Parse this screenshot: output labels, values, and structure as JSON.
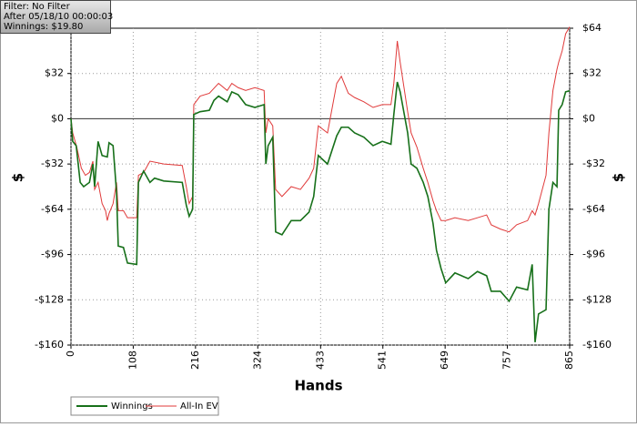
{
  "chart_data": {
    "type": "line",
    "annotations": [
      "Filter: No Filter",
      "After 05/18/10 00:00:03",
      "Winnings: $19.80"
    ],
    "x_label": "Hands",
    "y_label": "$",
    "y2_label": "$",
    "xlim": [
      0,
      865
    ],
    "xticks": [
      0,
      108,
      216,
      324,
      433,
      541,
      649,
      757,
      865
    ],
    "ylim": [
      -160,
      64
    ],
    "yticks": [
      {
        "value": -160,
        "label": "-$160"
      },
      {
        "value": -128,
        "label": "-$128"
      },
      {
        "value": -96,
        "label": "-$96"
      },
      {
        "value": -64,
        "label": "-$64"
      },
      {
        "value": -32,
        "label": "-$32"
      },
      {
        "value": 0,
        "label": "$0"
      },
      {
        "value": 32,
        "label": "$32"
      }
    ],
    "y2lim": [
      -160,
      64
    ],
    "y2ticks": [
      {
        "value": -160,
        "label": "-$160"
      },
      {
        "value": -128,
        "label": "-$128"
      },
      {
        "value": -96,
        "label": "-$96"
      },
      {
        "value": -64,
        "label": "-$64"
      },
      {
        "value": -32,
        "label": "-$32"
      },
      {
        "value": 0,
        "label": "$0"
      },
      {
        "value": 32,
        "label": "$32"
      },
      {
        "value": 64,
        "label": "$64"
      }
    ],
    "grid": true,
    "series": [
      {
        "name": "Winnings",
        "color": "#17701a",
        "x": [
          0,
          3,
          9,
          16,
          22,
          32,
          38,
          41,
          47,
          54,
          63,
          66,
          73,
          79,
          82,
          91,
          98,
          114,
          117,
          126,
          137,
          145,
          161,
          193,
          200,
          205,
          211,
          213,
          224,
          240,
          248,
          256,
          271,
          279,
          290,
          303,
          319,
          335,
          338,
          342,
          350,
          355,
          366,
          382,
          398,
          413,
          421,
          429,
          445,
          461,
          469,
          481,
          492,
          508,
          524,
          540,
          555,
          560,
          566,
          571,
          584,
          590,
          600,
          611,
          619,
          628,
          634,
          642,
          650,
          666,
          689,
          705,
          721,
          729,
          745,
          760,
          773,
          792,
          800,
          805,
          811,
          824,
          829,
          836,
          843,
          846,
          852,
          858,
          865
        ],
        "values": [
          0,
          -16,
          -19,
          -45,
          -48,
          -45,
          -32,
          -48,
          -16,
          -26,
          -27,
          -17,
          -19,
          -52,
          -90,
          -91,
          -102,
          -103,
          -45,
          -37,
          -45,
          -42,
          -44,
          -45,
          -61,
          -69,
          -64,
          3,
          5,
          6,
          13,
          16,
          12,
          19,
          17,
          10,
          8,
          10,
          -32,
          -19,
          -13,
          -80,
          -82,
          -72,
          -72,
          -66,
          -55,
          -26,
          -32,
          -12,
          -6,
          -6,
          -10,
          -13,
          -19,
          -16,
          -18,
          3,
          26,
          19,
          -10,
          -32,
          -35,
          -45,
          -55,
          -74,
          -93,
          -106,
          -116,
          -109,
          -113,
          -108,
          -111,
          -122,
          -122,
          -129,
          -119,
          -121,
          -103,
          -158,
          -138,
          -135,
          -64,
          -45,
          -48,
          6,
          10,
          19,
          19.8
        ]
      },
      {
        "name": "All-In EV",
        "color": "#e03a3a",
        "x": [
          0,
          3,
          10,
          18,
          25,
          32,
          38,
          41,
          47,
          54,
          60,
          63,
          66,
          73,
          79,
          82,
          91,
          98,
          114,
          117,
          126,
          137,
          161,
          193,
          200,
          205,
          211,
          213,
          224,
          240,
          256,
          271,
          279,
          290,
          303,
          319,
          335,
          338,
          342,
          350,
          355,
          366,
          382,
          398,
          413,
          421,
          429,
          445,
          461,
          469,
          481,
          492,
          508,
          524,
          540,
          555,
          560,
          566,
          571,
          584,
          590,
          600,
          611,
          619,
          628,
          634,
          642,
          650,
          666,
          689,
          705,
          721,
          729,
          745,
          760,
          773,
          792,
          800,
          805,
          811,
          824,
          829,
          836,
          843,
          846,
          852,
          858,
          865
        ],
        "values": [
          0,
          -10,
          -20,
          -35,
          -40,
          -38,
          -30,
          -50,
          -45,
          -60,
          -65,
          -72,
          -67,
          -60,
          -45,
          -65,
          -65,
          -70,
          -70,
          -40,
          -38,
          -30,
          -32,
          -33,
          -48,
          -60,
          -55,
          10,
          16,
          18,
          25,
          20,
          25,
          22,
          20,
          22,
          20,
          -10,
          0,
          -5,
          -50,
          -55,
          -48,
          -50,
          -42,
          -35,
          -5,
          -10,
          25,
          30,
          18,
          15,
          12,
          8,
          10,
          10,
          25,
          55,
          40,
          5,
          -10,
          -20,
          -35,
          -45,
          -58,
          -65,
          -72,
          -72,
          -70,
          -72,
          -70,
          -68,
          -75,
          -78,
          -80,
          -75,
          -72,
          -65,
          -68,
          -60,
          -40,
          -10,
          20,
          35,
          40,
          48,
          60,
          65
        ]
      }
    ]
  }
}
